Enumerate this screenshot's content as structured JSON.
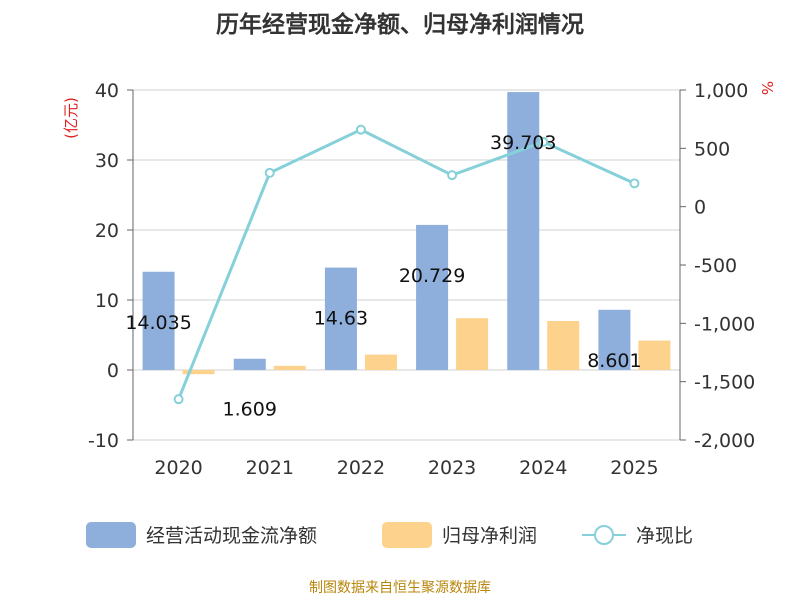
{
  "title": "历年经营现金净额、归母净利润情况",
  "source": "制图数据来自恒生聚源数据库",
  "chart_data": {
    "type": "bar",
    "categories": [
      "2020",
      "2021",
      "2022",
      "2023",
      "2024",
      "2025"
    ],
    "series": [
      {
        "name": "经营活动现金流净额",
        "type": "bar",
        "axis": "left",
        "color": "#8eaedc",
        "values": [
          14.035,
          1.609,
          14.63,
          20.729,
          39.703,
          8.601
        ]
      },
      {
        "name": "归母净利润",
        "type": "bar",
        "axis": "left",
        "color": "#fdd28c",
        "values": [
          -0.6,
          0.6,
          2.2,
          7.4,
          7.0,
          4.2
        ]
      },
      {
        "name": "净现比",
        "type": "line",
        "axis": "right",
        "color": "#86d1d9",
        "values": [
          -1650,
          290,
          660,
          270,
          555,
          200
        ]
      }
    ],
    "data_labels": [
      "14.035",
      "1.609",
      "14.63",
      "20.729",
      "39.703",
      "8.601"
    ],
    "left_axis": {
      "unit": "(亿元)",
      "ylim": [
        -10,
        40
      ],
      "ticks": [
        -10,
        0,
        10,
        20,
        30,
        40
      ],
      "tick_labels": [
        "-10",
        "0",
        "10",
        "20",
        "30",
        "40"
      ]
    },
    "right_axis": {
      "unit": "%",
      "ylim": [
        -2000,
        1000
      ],
      "ticks": [
        -2000,
        -1500,
        -1000,
        -500,
        0,
        500,
        1000
      ],
      "tick_labels": [
        "-2,000",
        "-1,500",
        "-1,000",
        "-500",
        "0",
        "500",
        "1,000"
      ]
    },
    "grid": true,
    "legend_position": "bottom"
  }
}
